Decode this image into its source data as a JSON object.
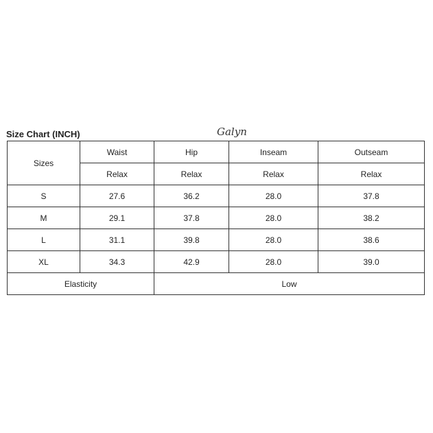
{
  "title": "Size Chart (INCH)",
  "brand": "Galyn",
  "header": {
    "sizes": "Sizes",
    "columns": [
      "Waist",
      "Hip",
      "Inseam",
      "Outseam"
    ],
    "sub": [
      "Relax",
      "Relax",
      "Relax",
      "Relax"
    ]
  },
  "rows": [
    {
      "size": "S",
      "values": [
        "27.6",
        "36.2",
        "28.0",
        "37.8"
      ]
    },
    {
      "size": "M",
      "values": [
        "29.1",
        "37.8",
        "28.0",
        "38.2"
      ]
    },
    {
      "size": "L",
      "values": [
        "31.1",
        "39.8",
        "28.0",
        "38.6"
      ]
    },
    {
      "size": "XL",
      "values": [
        "34.3",
        "42.9",
        "28.0",
        "39.0"
      ]
    }
  ],
  "elasticity": {
    "label": "Elasticity",
    "value": "Low"
  }
}
